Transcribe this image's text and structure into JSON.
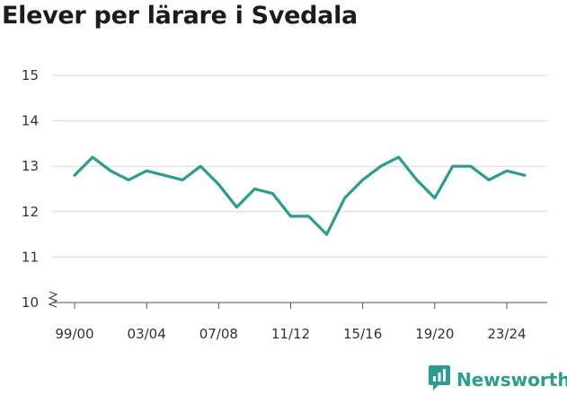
{
  "page_title": "Elever per lärare i Svedala",
  "brand": {
    "name": "Newsworthy",
    "icon": "newsworthy-logo-icon",
    "color": "#2a9d8f"
  },
  "chart_data": {
    "type": "line",
    "title": "Elever per lärare i Svedala",
    "xlabel": "",
    "ylabel": "",
    "x": [
      "99/00",
      "00/01",
      "01/02",
      "02/03",
      "03/04",
      "04/05",
      "05/06",
      "06/07",
      "07/08",
      "08/09",
      "09/10",
      "10/11",
      "11/12",
      "12/13",
      "13/14",
      "14/15",
      "15/16",
      "16/17",
      "17/18",
      "18/19",
      "19/20",
      "20/21",
      "21/22",
      "22/23",
      "23/24",
      "24/25"
    ],
    "x_tick_labels": [
      "99/00",
      "03/04",
      "07/08",
      "11/12",
      "15/16",
      "19/20",
      "23/24"
    ],
    "series": [
      {
        "values": [
          12.8,
          13.2,
          12.9,
          12.7,
          12.9,
          12.8,
          12.7,
          13.0,
          12.6,
          12.1,
          12.5,
          12.4,
          11.9,
          11.9,
          11.5,
          12.3,
          12.7,
          13.0,
          13.2,
          12.7,
          12.3,
          13.0,
          13.0,
          12.7,
          12.9,
          12.8
        ],
        "color": "#2a9d8f"
      }
    ],
    "y_ticks": [
      10,
      11,
      12,
      13,
      14,
      15
    ],
    "ylim": [
      10,
      15
    ],
    "y_axis_break": true,
    "grid": true,
    "legend": "none"
  }
}
